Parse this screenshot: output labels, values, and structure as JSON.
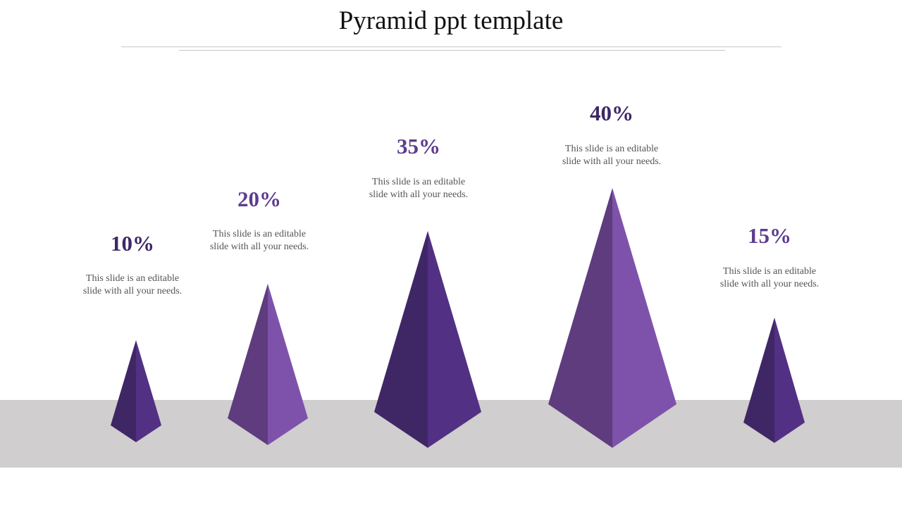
{
  "slide": {
    "title": "Pyramid ppt template"
  },
  "items": [
    {
      "percent": "10%",
      "description": "This slide is an editable slide with all your needs.",
      "color": "#3f2766"
    },
    {
      "percent": "20%",
      "description": "This slide is an editable slide with all your needs.",
      "color": "#5e3c91"
    },
    {
      "percent": "35%",
      "description": "This slide is an editable slide with all your needs.",
      "color": "#5e3c91"
    },
    {
      "percent": "40%",
      "description": "This slide is an editable slide with all your needs.",
      "color": "#3f2766"
    },
    {
      "percent": "15%",
      "description": "This slide is an editable slide with all your needs.",
      "color": "#5e3c91"
    }
  ],
  "colors": {
    "dark_purple": "#3f2766",
    "purple": "#523084",
    "muted_purple": "#5e3c7e",
    "light_purple": "#7e52ab",
    "floor": "#d0cece"
  }
}
